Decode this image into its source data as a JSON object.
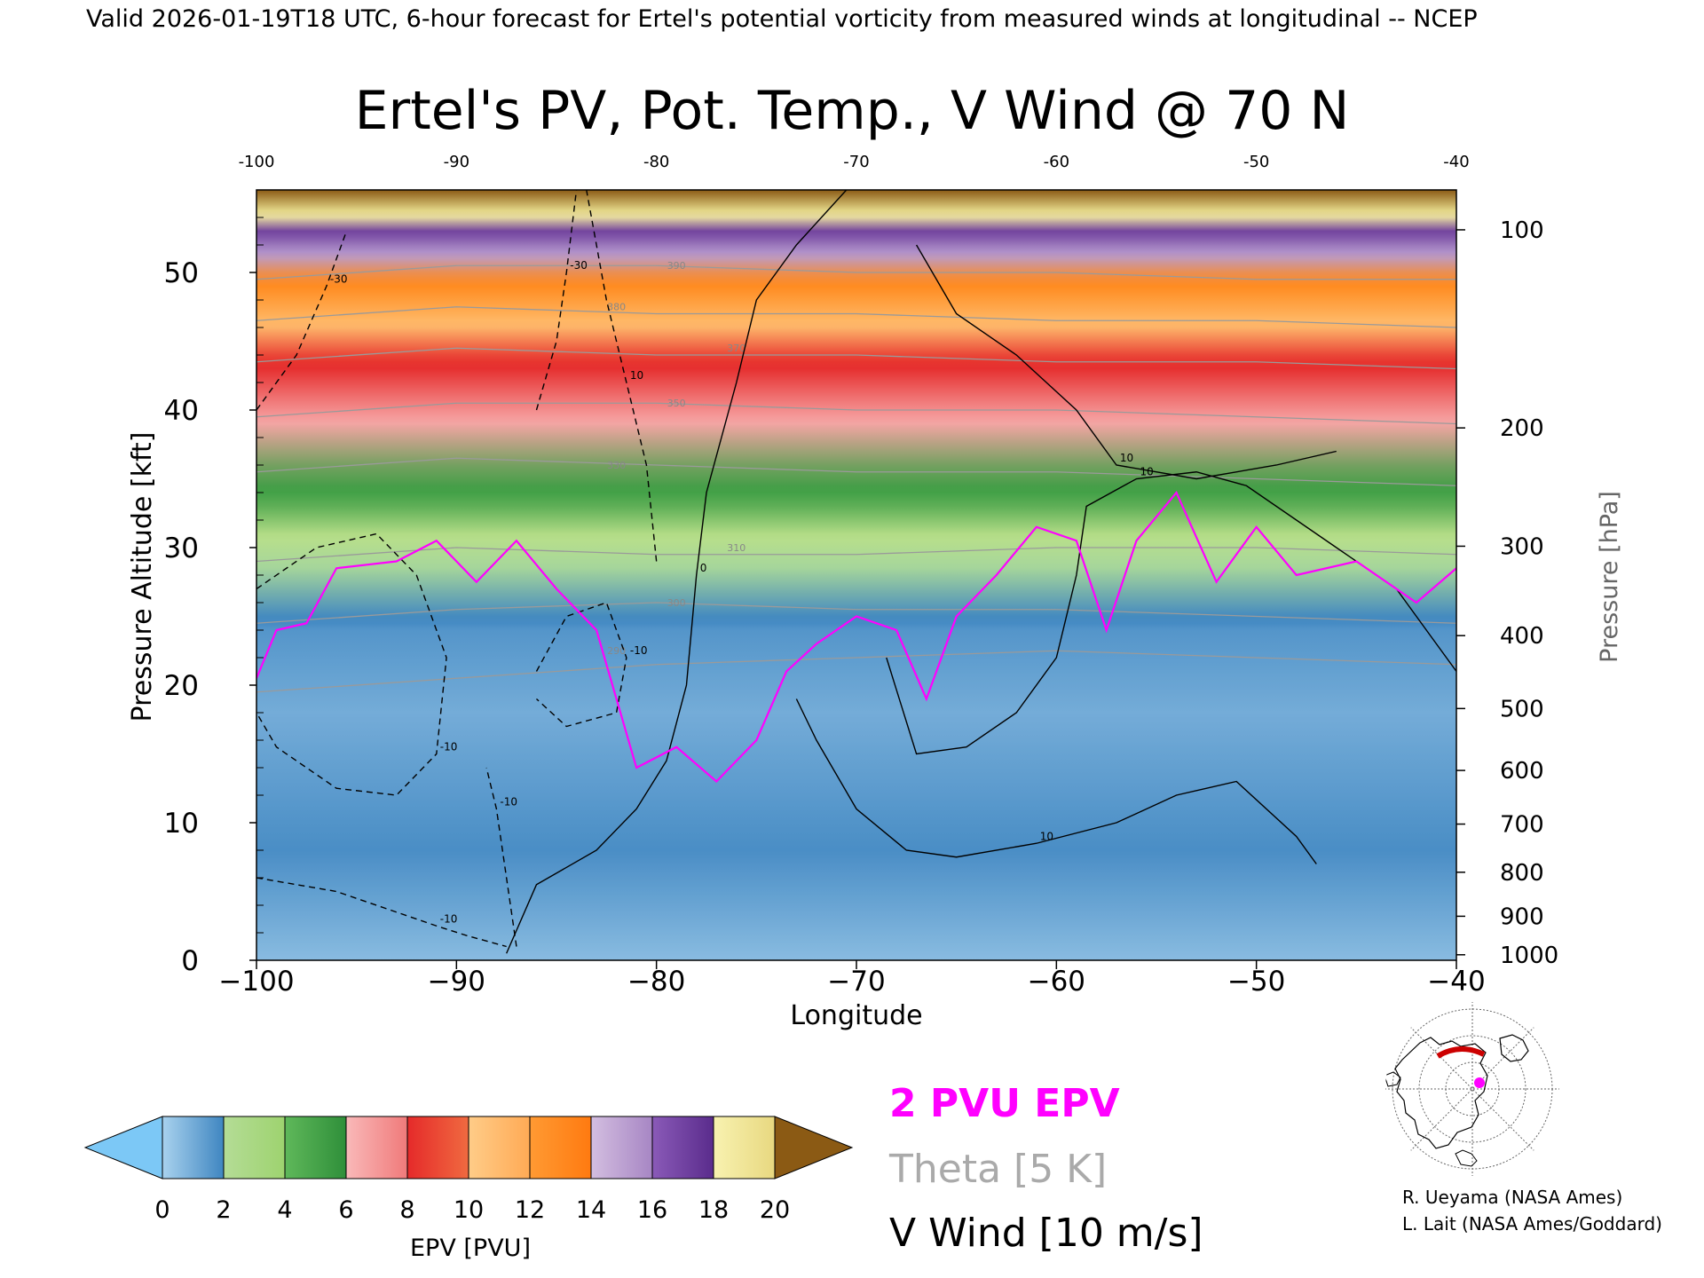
{
  "banner": "Valid 2026-01-19T18 UTC, 6-hour forecast for Ertel's potential vorticity from measured winds at longitudinal -- NCEP",
  "chart_data": {
    "type": "heatmap",
    "title": "Ertel's PV, Pot. Temp., V Wind @ 70 N",
    "xlabel": "Longitude",
    "ylabel": "Pressure Altitude [kft]",
    "ylabel_right": "Pressure [hPa]",
    "xlim": [
      -100,
      -40
    ],
    "ylim": [
      0,
      56
    ],
    "x_ticks": [
      -100,
      -90,
      -80,
      -70,
      -60,
      -50,
      -40
    ],
    "x_tick_labels": [
      "−100",
      "−90",
      "−80",
      "−70",
      "−60",
      "−50",
      "−40"
    ],
    "top_tick_labels": [
      "-100",
      "-90",
      "-80",
      "-70",
      "-60",
      "-50",
      "-40"
    ],
    "y_ticks": [
      0,
      10,
      20,
      30,
      40,
      50
    ],
    "y_tick_labels": [
      "0",
      "10",
      "20",
      "30",
      "40",
      "50"
    ],
    "pressure_ticks": [
      {
        "label": "100",
        "kft": 53.1
      },
      {
        "label": "200",
        "kft": 38.7
      },
      {
        "label": "300",
        "kft": 30.1
      },
      {
        "label": "400",
        "kft": 23.6
      },
      {
        "label": "500",
        "kft": 18.3
      },
      {
        "label": "600",
        "kft": 13.8
      },
      {
        "label": "700",
        "kft": 9.9
      },
      {
        "label": "800",
        "kft": 6.4
      },
      {
        "label": "900",
        "kft": 3.2
      },
      {
        "label": "1000",
        "kft": 0.4
      }
    ],
    "colorbar": {
      "label": "EPV [PVU]",
      "ticks": [
        "0",
        "2",
        "4",
        "6",
        "8",
        "10",
        "12",
        "14",
        "16",
        "18",
        "20"
      ],
      "under_color": "#7cc8f6",
      "over_color": "#8b5a14",
      "colors": [
        "#9ac6e2",
        "#3f86c1",
        "#b4dc96",
        "#52b04d",
        "#f7a5a5",
        "#e52a2a",
        "#ffbd6e",
        "#ff8a1e",
        "#c2a6d4",
        "#6f3f9e",
        "#f6f0a0",
        "#8b5a14"
      ]
    },
    "epv_stops": [
      {
        "pvu": 0.5,
        "color": "#a9d2ee"
      },
      {
        "pvu": 1.5,
        "color": "#3f86c1"
      },
      {
        "pvu": 2.5,
        "color": "#a8d79a"
      },
      {
        "pvu": 3.5,
        "color": "#b9df8a"
      },
      {
        "pvu": 5.0,
        "color": "#3e9e44"
      },
      {
        "pvu": 7.0,
        "color": "#f7a5a5"
      },
      {
        "pvu": 9.0,
        "color": "#e52a2a"
      },
      {
        "pvu": 11.0,
        "color": "#ffbd6e"
      },
      {
        "pvu": 13.0,
        "color": "#ff8a1e"
      },
      {
        "pvu": 15.0,
        "color": "#b89ccf"
      },
      {
        "pvu": 17.0,
        "color": "#6f3f9e"
      },
      {
        "pvu": 18.5,
        "color": "#f6f0a0"
      },
      {
        "pvu": 20.5,
        "color": "#8b5a14"
      }
    ],
    "pvu_profile": [
      {
        "kft": 0,
        "pvu": 0.8
      },
      {
        "kft": 8,
        "pvu": 1.4
      },
      {
        "kft": 18,
        "pvu": 1.0
      },
      {
        "kft": 24,
        "pvu": 1.3
      },
      {
        "kft": 29,
        "pvu": 2.6
      },
      {
        "kft": 33,
        "pvu": 4.6
      },
      {
        "kft": 36,
        "pvu": 5.6
      },
      {
        "kft": 40,
        "pvu": 7.4
      },
      {
        "kft": 44,
        "pvu": 9.4
      },
      {
        "kft": 47,
        "pvu": 11.6
      },
      {
        "kft": 50,
        "pvu": 13.6
      },
      {
        "kft": 52,
        "pvu": 15.8
      },
      {
        "kft": 54,
        "pvu": 18.3
      },
      {
        "kft": 56,
        "pvu": 20.5
      }
    ],
    "tropopause_2pvu": [
      {
        "lon": -100,
        "kft": 20.5
      },
      {
        "lon": -99,
        "kft": 24
      },
      {
        "lon": -97.5,
        "kft": 24.5
      },
      {
        "lon": -96,
        "kft": 28.5
      },
      {
        "lon": -93,
        "kft": 29
      },
      {
        "lon": -91,
        "kft": 30.5
      },
      {
        "lon": -89,
        "kft": 27.5
      },
      {
        "lon": -87,
        "kft": 30.5
      },
      {
        "lon": -85,
        "kft": 27
      },
      {
        "lon": -83,
        "kft": 24
      },
      {
        "lon": -82,
        "kft": 19
      },
      {
        "lon": -81,
        "kft": 14
      },
      {
        "lon": -79,
        "kft": 15.5
      },
      {
        "lon": -77,
        "kft": 13
      },
      {
        "lon": -75,
        "kft": 16
      },
      {
        "lon": -73.5,
        "kft": 21
      },
      {
        "lon": -72,
        "kft": 23
      },
      {
        "lon": -70,
        "kft": 25
      },
      {
        "lon": -68,
        "kft": 24
      },
      {
        "lon": -66.5,
        "kft": 19
      },
      {
        "lon": -65,
        "kft": 25
      },
      {
        "lon": -63,
        "kft": 28
      },
      {
        "lon": -61,
        "kft": 31.5
      },
      {
        "lon": -59,
        "kft": 30.5
      },
      {
        "lon": -57.5,
        "kft": 24
      },
      {
        "lon": -56,
        "kft": 30.5
      },
      {
        "lon": -54,
        "kft": 34
      },
      {
        "lon": -52,
        "kft": 27.5
      },
      {
        "lon": -50,
        "kft": 31.5
      },
      {
        "lon": -48,
        "kft": 28
      },
      {
        "lon": -45,
        "kft": 29
      },
      {
        "lon": -42,
        "kft": 26
      },
      {
        "lon": -40,
        "kft": 28.5
      }
    ],
    "theta_contours": [
      {
        "label": "290",
        "kft": [
          19.5,
          20.5,
          21.5,
          22,
          22.5,
          22,
          21.5
        ]
      },
      {
        "label": "300",
        "kft": [
          24.5,
          25.5,
          26,
          25.5,
          25.5,
          25,
          24.5
        ]
      },
      {
        "label": "310",
        "kft": [
          29,
          30,
          29.5,
          29.5,
          30,
          30,
          29.5
        ]
      },
      {
        "label": "330",
        "kft": [
          35.5,
          36.5,
          36,
          35.5,
          35.5,
          35,
          34.5
        ]
      },
      {
        "label": "350",
        "kft": [
          39.5,
          40.5,
          40.5,
          40,
          40,
          39.5,
          39
        ]
      },
      {
        "label": "370",
        "kft": [
          43.5,
          44.5,
          44,
          44,
          43.5,
          43.5,
          43
        ]
      },
      {
        "label": "380",
        "kft": [
          46.5,
          47.5,
          47,
          47,
          46.5,
          46.5,
          46
        ]
      },
      {
        "label": "390",
        "kft": [
          49.5,
          50.5,
          50.5,
          50,
          50,
          49.5,
          49.5
        ]
      }
    ],
    "vwind_contours": [
      {
        "label": "0",
        "dashed": false,
        "points": [
          [
            -87.5,
            0.5
          ],
          [
            -86,
            5.5
          ],
          [
            -83,
            8
          ],
          [
            -81,
            11
          ],
          [
            -79.5,
            14.5
          ],
          [
            -78.5,
            20
          ],
          [
            -78,
            28
          ],
          [
            -77.5,
            34
          ],
          [
            -76,
            42
          ],
          [
            -75,
            48
          ],
          [
            -73,
            52
          ],
          [
            -70.5,
            56
          ]
        ]
      },
      {
        "label": "10",
        "dashed": false,
        "points": [
          [
            -73,
            19
          ],
          [
            -72,
            16
          ],
          [
            -70,
            11
          ],
          [
            -67.5,
            8
          ],
          [
            -65,
            7.5
          ],
          [
            -61,
            8.5
          ],
          [
            -57,
            10
          ],
          [
            -54,
            12
          ],
          [
            -51,
            13
          ],
          [
            -48,
            9
          ],
          [
            -47,
            7
          ]
        ]
      },
      {
        "label": "10",
        "dashed": false,
        "points": [
          [
            -68.5,
            22
          ],
          [
            -67,
            15
          ],
          [
            -64.5,
            15.5
          ],
          [
            -62,
            18
          ],
          [
            -60,
            22
          ],
          [
            -59,
            28
          ],
          [
            -58.5,
            33
          ],
          [
            -56,
            35
          ],
          [
            -53,
            35.5
          ],
          [
            -50.5,
            34.5
          ],
          [
            -48,
            32
          ],
          [
            -46,
            30
          ],
          [
            -43,
            27
          ],
          [
            -41,
            23
          ],
          [
            -40,
            21
          ]
        ]
      },
      {
        "label": "10",
        "dashed": false,
        "points": [
          [
            -67,
            52
          ],
          [
            -65,
            47
          ],
          [
            -62,
            44
          ],
          [
            -59,
            40
          ],
          [
            -57,
            36
          ],
          [
            -53,
            35
          ],
          [
            -49,
            36
          ],
          [
            -46,
            37
          ]
        ]
      },
      {
        "label": "-10",
        "dashed": true,
        "points": [
          [
            -100,
            6
          ],
          [
            -96,
            5
          ],
          [
            -93,
            3.5
          ],
          [
            -91,
            2.5
          ],
          [
            -89.5,
            1.8
          ],
          [
            -87.5,
            1
          ]
        ]
      },
      {
        "label": "-10",
        "dashed": true,
        "points": [
          [
            -100,
            27
          ],
          [
            -97,
            30
          ],
          [
            -94,
            31
          ],
          [
            -92,
            28
          ],
          [
            -90.5,
            22
          ],
          [
            -91,
            15
          ],
          [
            -93,
            12
          ],
          [
            -96,
            12.5
          ],
          [
            -99,
            15.5
          ],
          [
            -100,
            18
          ]
        ]
      },
      {
        "label": "-10",
        "dashed": true,
        "points": [
          [
            -86,
            21
          ],
          [
            -84.5,
            25
          ],
          [
            -82.5,
            26
          ],
          [
            -81.5,
            22
          ],
          [
            -82,
            18
          ],
          [
            -84.5,
            17
          ],
          [
            -86,
            19
          ]
        ]
      },
      {
        "label": "-10",
        "dashed": true,
        "points": [
          [
            -87,
            1
          ],
          [
            -87.5,
            6
          ],
          [
            -88,
            11
          ],
          [
            -88.5,
            14
          ]
        ]
      },
      {
        "label": "10",
        "dashed": true,
        "points": [
          [
            -80,
            29
          ],
          [
            -80.5,
            36
          ],
          [
            -81.5,
            42
          ],
          [
            -82.5,
            48
          ],
          [
            -83.5,
            56
          ]
        ]
      },
      {
        "label": "-30",
        "dashed": true,
        "points": [
          [
            -100,
            40
          ],
          [
            -98,
            44
          ],
          [
            -96.5,
            49
          ],
          [
            -95.5,
            53
          ]
        ]
      },
      {
        "label": "-30",
        "dashed": true,
        "points": [
          [
            -86,
            40
          ],
          [
            -85,
            45
          ],
          [
            -84.5,
            50
          ],
          [
            -84,
            56
          ]
        ]
      }
    ]
  },
  "legend": {
    "pvu_label": "2 PVU EPV",
    "theta_label": "Theta [5 K]",
    "vwind_label": "V Wind [10 m/s]"
  },
  "inset_map": {
    "marker_color": "#ff00ff",
    "section_color": "#cc0000"
  },
  "credits": {
    "line1": "R. Ueyama (NASA Ames)",
    "line2": "L. Lait (NASA Ames/Goddard)"
  }
}
